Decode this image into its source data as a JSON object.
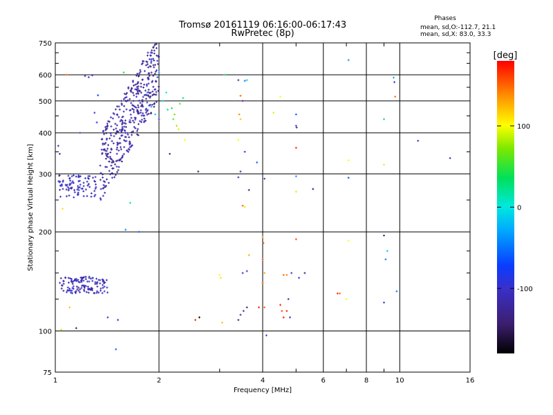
{
  "title_line1": "Tromsø 20161119 06:16:00-06:17:43",
  "title_line2": "RwPretec (8p)",
  "stats": {
    "heading": "Phases",
    "line_o": "mean, sd,O:-112.7, 21.1",
    "line_x": "mean, sd,X:  83.0, 33.3"
  },
  "colorbar": {
    "unit": "[deg]",
    "min": -180,
    "max": 180,
    "ticks": [
      {
        "label": "100",
        "value": 100
      },
      {
        "label": "0",
        "value": 0
      },
      {
        "label": "-100",
        "value": -100
      }
    ]
  },
  "chart_data": {
    "type": "scatter",
    "title": "Tromsø 20161119 06:16:00-06:17:43",
    "subtitle": "RwPretec (8p)",
    "xlabel": "Frequency [MHz]",
    "ylabel": "Stationary phase Virtual Height [km]",
    "xscale": "log",
    "yscale": "log",
    "xlim": [
      1,
      16
    ],
    "ylim": [
      75,
      750
    ],
    "grid": true,
    "xticks": [
      {
        "label": "1",
        "value": 1
      },
      {
        "label": "2",
        "value": 2
      },
      {
        "label": "4",
        "value": 4
      },
      {
        "label": "6",
        "value": 6
      },
      {
        "label": "8",
        "value": 8
      },
      {
        "label": "10",
        "value": 10
      },
      {
        "label": "16",
        "value": 16
      }
    ],
    "xgrid": [
      2,
      4,
      6,
      8,
      10
    ],
    "xminor": [
      3,
      5,
      7,
      9
    ],
    "yticks": [
      {
        "label": "75",
        "value": 75
      },
      {
        "label": "100",
        "value": 100
      },
      {
        "label": "200",
        "value": 200
      },
      {
        "label": "300",
        "value": 300
      },
      {
        "label": "400",
        "value": 400
      },
      {
        "label": "500",
        "value": 500
      },
      {
        "label": "600",
        "value": 600
      },
      {
        "label": "750",
        "value": 750
      }
    ],
    "ygrid": [
      100,
      200,
      300,
      400,
      500,
      600
    ],
    "yminor": [
      125,
      150,
      175,
      250,
      350,
      450,
      550,
      650,
      700
    ],
    "color_scale": "phase in degrees",
    "clusters": [
      {
        "name": "o-trace-upper",
        "x_range": [
          1.35,
          2.0
        ],
        "y_center": 360,
        "y_spread_factor": 1.6,
        "phase": -120,
        "count": 420
      },
      {
        "name": "o-trace-low-freq",
        "x_range": [
          1.02,
          1.32
        ],
        "y_center": 275,
        "y_spread_factor": 1.08,
        "phase": -105,
        "count": 90
      },
      {
        "name": "e-layer",
        "x_range": [
          1.03,
          1.42
        ],
        "y_center": 138,
        "y_spread_factor": 1.06,
        "phase": -110,
        "count": 130
      }
    ],
    "points": [
      {
        "x": 1.22,
        "y": 595,
        "phase": -110
      },
      {
        "x": 1.25,
        "y": 590,
        "phase": -110
      },
      {
        "x": 1.28,
        "y": 598,
        "phase": -95
      },
      {
        "x": 1.3,
        "y": 460,
        "phase": -90
      },
      {
        "x": 1.32,
        "y": 430,
        "phase": -85
      },
      {
        "x": 1.33,
        "y": 520,
        "phase": -80
      },
      {
        "x": 1.18,
        "y": 400,
        "phase": -115
      },
      {
        "x": 1.02,
        "y": 365,
        "phase": -125
      },
      {
        "x": 1.03,
        "y": 345,
        "phase": -110
      },
      {
        "x": 1.05,
        "y": 235,
        "phase": 110
      },
      {
        "x": 1.08,
        "y": 600,
        "phase": 150
      },
      {
        "x": 1.1,
        "y": 118,
        "phase": 120
      },
      {
        "x": 1.04,
        "y": 101,
        "phase": 90
      },
      {
        "x": 1.15,
        "y": 102,
        "phase": -150
      },
      {
        "x": 1.58,
        "y": 610,
        "phase": 40
      },
      {
        "x": 1.65,
        "y": 245,
        "phase": 20
      },
      {
        "x": 1.6,
        "y": 203,
        "phase": -40
      },
      {
        "x": 1.75,
        "y": 200,
        "phase": -60
      },
      {
        "x": 1.52,
        "y": 108,
        "phase": -90
      },
      {
        "x": 1.5,
        "y": 88,
        "phase": -60
      },
      {
        "x": 1.42,
        "y": 110,
        "phase": -100
      },
      {
        "x": 1.85,
        "y": 530,
        "phase": -40
      },
      {
        "x": 1.9,
        "y": 480,
        "phase": -30
      },
      {
        "x": 1.95,
        "y": 455,
        "phase": -10
      },
      {
        "x": 2.05,
        "y": 500,
        "phase": -20
      },
      {
        "x": 2.1,
        "y": 530,
        "phase": 0
      },
      {
        "x": 2.12,
        "y": 470,
        "phase": 20
      },
      {
        "x": 2.18,
        "y": 475,
        "phase": 40
      },
      {
        "x": 2.2,
        "y": 440,
        "phase": 60
      },
      {
        "x": 2.22,
        "y": 455,
        "phase": 70
      },
      {
        "x": 2.25,
        "y": 420,
        "phase": 80
      },
      {
        "x": 2.28,
        "y": 410,
        "phase": 90
      },
      {
        "x": 2.3,
        "y": 490,
        "phase": 60
      },
      {
        "x": 2.35,
        "y": 510,
        "phase": 30
      },
      {
        "x": 2.0,
        "y": 610,
        "phase": -40
      },
      {
        "x": 1.98,
        "y": 590,
        "phase": -60
      },
      {
        "x": 1.9,
        "y": 660,
        "phase": -80
      },
      {
        "x": 2.0,
        "y": 440,
        "phase": -100
      },
      {
        "x": 2.15,
        "y": 345,
        "phase": -120
      },
      {
        "x": 2.38,
        "y": 380,
        "phase": 100
      },
      {
        "x": 2.6,
        "y": 305,
        "phase": -150
      },
      {
        "x": 2.62,
        "y": 110,
        "phase": -180
      },
      {
        "x": 2.55,
        "y": 108,
        "phase": 170
      },
      {
        "x": 3.0,
        "y": 148,
        "phase": 100
      },
      {
        "x": 3.02,
        "y": 145,
        "phase": 110
      },
      {
        "x": 3.05,
        "y": 106,
        "phase": 120
      },
      {
        "x": 3.1,
        "y": 600,
        "phase": 40
      },
      {
        "x": 3.4,
        "y": 578,
        "phase": -120
      },
      {
        "x": 3.55,
        "y": 575,
        "phase": -50
      },
      {
        "x": 3.6,
        "y": 578,
        "phase": -10
      },
      {
        "x": 3.45,
        "y": 518,
        "phase": 150
      },
      {
        "x": 3.5,
        "y": 500,
        "phase": -130
      },
      {
        "x": 3.42,
        "y": 455,
        "phase": 140
      },
      {
        "x": 3.45,
        "y": 440,
        "phase": 120
      },
      {
        "x": 3.4,
        "y": 380,
        "phase": 100
      },
      {
        "x": 3.55,
        "y": 350,
        "phase": -90
      },
      {
        "x": 3.85,
        "y": 325,
        "phase": -60
      },
      {
        "x": 3.45,
        "y": 305,
        "phase": -120
      },
      {
        "x": 3.4,
        "y": 293,
        "phase": -110
      },
      {
        "x": 3.65,
        "y": 268,
        "phase": -150
      },
      {
        "x": 3.5,
        "y": 240,
        "phase": 150
      },
      {
        "x": 3.55,
        "y": 238,
        "phase": 110
      },
      {
        "x": 3.65,
        "y": 170,
        "phase": 130
      },
      {
        "x": 3.6,
        "y": 152,
        "phase": -90
      },
      {
        "x": 3.5,
        "y": 150,
        "phase": -100
      },
      {
        "x": 3.52,
        "y": 115,
        "phase": -110
      },
      {
        "x": 3.45,
        "y": 112,
        "phase": -120
      },
      {
        "x": 3.4,
        "y": 108,
        "phase": -130
      },
      {
        "x": 3.6,
        "y": 118,
        "phase": -140
      },
      {
        "x": 4.0,
        "y": 193,
        "phase": 140
      },
      {
        "x": 4.02,
        "y": 185,
        "phase": 150
      },
      {
        "x": 4.0,
        "y": 165,
        "phase": 160
      },
      {
        "x": 4.05,
        "y": 150,
        "phase": 130
      },
      {
        "x": 4.0,
        "y": 140,
        "phase": 160
      },
      {
        "x": 4.05,
        "y": 118,
        "phase": 150
      },
      {
        "x": 4.1,
        "y": 97,
        "phase": -100
      },
      {
        "x": 4.05,
        "y": 290,
        "phase": -110
      },
      {
        "x": 3.9,
        "y": 118,
        "phase": 170
      },
      {
        "x": 4.3,
        "y": 460,
        "phase": 90
      },
      {
        "x": 4.5,
        "y": 515,
        "phase": 100
      },
      {
        "x": 4.6,
        "y": 148,
        "phase": 150
      },
      {
        "x": 4.7,
        "y": 148,
        "phase": 140
      },
      {
        "x": 4.5,
        "y": 120,
        "phase": 170
      },
      {
        "x": 4.55,
        "y": 115,
        "phase": 160
      },
      {
        "x": 4.6,
        "y": 110,
        "phase": 175
      },
      {
        "x": 4.7,
        "y": 115,
        "phase": 170
      },
      {
        "x": 4.75,
        "y": 125,
        "phase": -120
      },
      {
        "x": 4.8,
        "y": 110,
        "phase": -110
      },
      {
        "x": 4.85,
        "y": 150,
        "phase": -100
      },
      {
        "x": 5.0,
        "y": 455,
        "phase": -60
      },
      {
        "x": 5.0,
        "y": 420,
        "phase": -100
      },
      {
        "x": 5.02,
        "y": 415,
        "phase": -130
      },
      {
        "x": 5.0,
        "y": 360,
        "phase": 170
      },
      {
        "x": 5.0,
        "y": 295,
        "phase": -40
      },
      {
        "x": 5.0,
        "y": 265,
        "phase": 90
      },
      {
        "x": 5.0,
        "y": 190,
        "phase": 160
      },
      {
        "x": 5.1,
        "y": 145,
        "phase": -90
      },
      {
        "x": 5.3,
        "y": 150,
        "phase": -140
      },
      {
        "x": 5.6,
        "y": 270,
        "phase": -150
      },
      {
        "x": 6.6,
        "y": 130,
        "phase": 170
      },
      {
        "x": 6.7,
        "y": 130,
        "phase": 150
      },
      {
        "x": 7.0,
        "y": 125,
        "phase": 100
      },
      {
        "x": 7.1,
        "y": 665,
        "phase": -40
      },
      {
        "x": 7.1,
        "y": 330,
        "phase": 100
      },
      {
        "x": 7.1,
        "y": 292,
        "phase": -70
      },
      {
        "x": 7.1,
        "y": 188,
        "phase": 100
      },
      {
        "x": 9.0,
        "y": 195,
        "phase": -130
      },
      {
        "x": 9.2,
        "y": 175,
        "phase": -20
      },
      {
        "x": 9.1,
        "y": 165,
        "phase": -50
      },
      {
        "x": 9.0,
        "y": 440,
        "phase": 40
      },
      {
        "x": 9.0,
        "y": 320,
        "phase": 110
      },
      {
        "x": 9.0,
        "y": 122,
        "phase": -90
      },
      {
        "x": 9.6,
        "y": 588,
        "phase": -30
      },
      {
        "x": 9.65,
        "y": 570,
        "phase": -80
      },
      {
        "x": 9.7,
        "y": 515,
        "phase": 150
      },
      {
        "x": 9.8,
        "y": 132,
        "phase": -50
      },
      {
        "x": 11.3,
        "y": 378,
        "phase": -110
      },
      {
        "x": 14.0,
        "y": 335,
        "phase": -120
      }
    ]
  }
}
